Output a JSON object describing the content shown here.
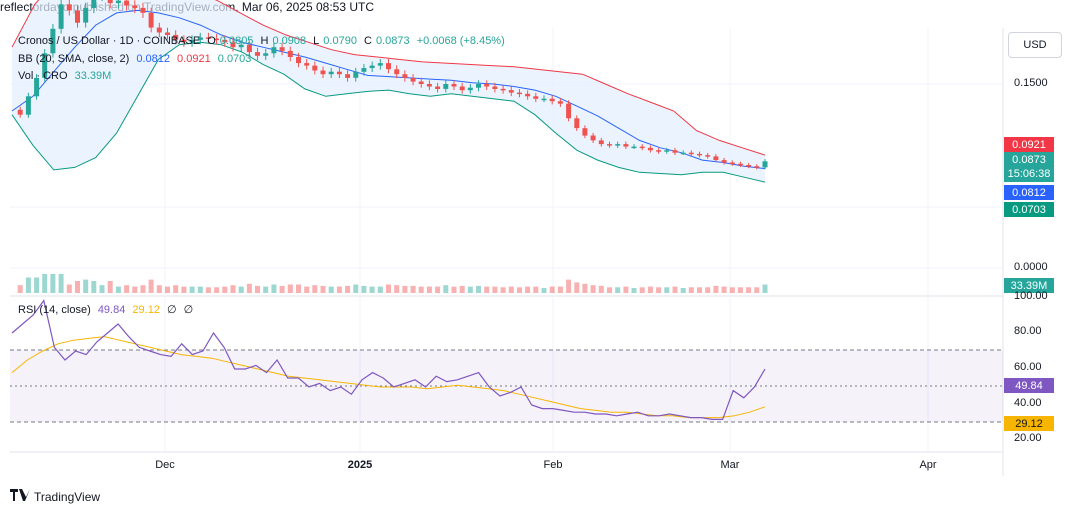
{
  "header": {
    "published": "reflectordayo published on TradingView.com, Mar 06, 2025 08:53 UTC"
  },
  "legend": {
    "main_symbol": "Cronos / US Dollar · 1D · COINBASE",
    "ohlc_o_label": "O",
    "ohlc_o": "0.0805",
    "ohlc_h_label": "H",
    "ohlc_h": "0.0908",
    "ohlc_l_label": "L",
    "ohlc_l": "0.0790",
    "ohlc_c_label": "C",
    "ohlc_c": "0.0873",
    "ohlc_change": "+0.0068 (+8.45%)",
    "bb_label": "BB (20, SMA, close, 2)",
    "bb_basis": "0.0812",
    "bb_upper": "0.0921",
    "bb_lower": "0.0703",
    "vol_label": "Vol · CRO",
    "vol_value": "33.39M",
    "rsi_label": "RSI (14, close)",
    "rsi_value": "49.84",
    "rsi_ma": "29.12",
    "rsi_extra1": "∅",
    "rsi_extra2": "∅"
  },
  "currency_button": "USD",
  "price_axis": {
    "tick_150": "0.1500",
    "tick_0": "0.0000"
  },
  "price_tags": {
    "bb_upper": "0.0921",
    "last": "0.0873",
    "countdown": "15:06:38",
    "bb_basis": "0.0812",
    "bb_lower": "0.0703",
    "volume": "33.39M"
  },
  "rsi_axis": {
    "t100": "100.00",
    "t80": "80.00",
    "t60": "60.00",
    "t40": "40.00",
    "t20": "20.00"
  },
  "rsi_tags": {
    "rsi": "49.84",
    "ma": "29.12"
  },
  "time_axis": [
    "Dec",
    "2025",
    "Feb",
    "Mar",
    "Apr"
  ],
  "footer": {
    "brand": "TradingView"
  },
  "colors": {
    "up": "#26a69a",
    "down": "#ef5350",
    "bb_upper": "#f23645",
    "bb_basis": "#2962ff",
    "bb_lower": "#089981",
    "bb_fill": "#e3effd",
    "rsi": "#7e57c2",
    "rsi_ma": "#f7b500"
  },
  "chart_data": {
    "type": "candlestick",
    "title": "Cronos / US Dollar · 1D · COINBASE",
    "price_axis": {
      "labeled_ticks": [
        0.15,
        0.0
      ]
    },
    "bollinger": {
      "basis": 0.0812,
      "upper": 0.0921,
      "lower": 0.0703
    },
    "last": {
      "open": 0.0805,
      "high": 0.0908,
      "low": 0.079,
      "close": 0.0873
    },
    "close_path": [
      [
        0.129,
        0.125,
        0.14,
        0.155,
        0.175,
        0.195,
        0.215,
        0.21,
        0.2,
        0.212,
        0.222,
        0.226,
        0.216,
        0.218,
        0.214,
        0.212,
        0.208,
        0.196,
        0.192,
        0.19,
        0.186,
        0.184,
        0.186,
        0.188,
        0.187,
        0.186,
        0.184,
        0.18,
        0.182,
        0.176,
        0.173,
        0.175,
        0.18,
        0.177,
        0.172,
        0.167,
        0.165,
        0.161,
        0.158,
        0.16,
        0.158,
        0.155,
        0.16,
        0.163,
        0.165,
        0.167,
        0.162,
        0.158,
        0.155,
        0.152,
        0.15,
        0.148,
        0.146,
        0.15,
        0.148,
        0.145,
        0.147,
        0.15,
        0.148,
        0.146,
        0.145,
        0.143,
        0.142,
        0.14,
        0.138,
        0.138,
        0.136,
        0.134,
        0.122,
        0.114,
        0.108,
        0.104,
        0.101,
        0.1,
        0.101,
        0.099,
        0.099,
        0.098,
        0.096,
        0.095,
        0.096,
        0.094,
        0.094,
        0.093,
        0.092,
        0.091,
        0.088,
        0.086,
        0.085,
        0.084,
        0.083,
        0.082,
        0.087
      ]
    ],
    "bb_upper_path": [
      0.18,
      0.215,
      0.236,
      0.24,
      0.24,
      0.238,
      0.234,
      0.23,
      0.226,
      0.218,
      0.208,
      0.198,
      0.19,
      0.184,
      0.178,
      0.174,
      0.172,
      0.17,
      0.168,
      0.167,
      0.166,
      0.165,
      0.164,
      0.162,
      0.16,
      0.158,
      0.15,
      0.142,
      0.135,
      0.128,
      0.112,
      0.104,
      0.098,
      0.092
    ],
    "bb_basis_path": [
      0.128,
      0.14,
      0.16,
      0.18,
      0.198,
      0.208,
      0.21,
      0.208,
      0.204,
      0.198,
      0.19,
      0.184,
      0.18,
      0.176,
      0.172,
      0.167,
      0.162,
      0.157,
      0.156,
      0.155,
      0.154,
      0.153,
      0.151,
      0.15,
      0.148,
      0.145,
      0.14,
      0.132,
      0.124,
      0.114,
      0.104,
      0.098,
      0.094,
      0.088,
      0.086,
      0.083,
      0.081
    ],
    "bb_lower_path": [
      0.125,
      0.1,
      0.08,
      0.082,
      0.09,
      0.11,
      0.14,
      0.17,
      0.182,
      0.184,
      0.182,
      0.176,
      0.166,
      0.158,
      0.146,
      0.14,
      0.142,
      0.144,
      0.145,
      0.142,
      0.14,
      0.142,
      0.14,
      0.138,
      0.136,
      0.125,
      0.11,
      0.096,
      0.088,
      0.082,
      0.078,
      0.077,
      0.076,
      0.078,
      0.078,
      0.074,
      0.07
    ],
    "rsi": [
      70,
      75,
      80,
      88,
      62,
      55,
      60,
      58,
      65,
      70,
      75,
      68,
      62,
      60,
      58,
      57,
      64,
      58,
      60,
      70,
      62,
      50,
      50,
      52,
      48,
      55,
      45,
      45,
      40,
      42,
      38,
      40,
      36,
      44,
      48,
      45,
      40,
      42,
      44,
      40,
      46,
      43,
      44,
      46,
      48,
      40,
      35,
      37,
      40,
      30,
      28,
      28,
      27,
      26,
      26,
      25,
      25,
      24,
      25,
      26,
      24,
      24,
      25,
      24,
      23,
      23,
      22,
      22,
      38,
      34,
      40,
      50
    ],
    "rsi_ma": [
      48,
      55,
      60,
      64,
      66,
      67,
      68,
      66,
      64,
      62,
      60,
      58,
      57,
      56,
      54,
      52,
      50,
      48,
      46,
      45,
      44,
      43,
      42,
      41,
      40,
      40,
      40,
      39,
      40,
      41,
      40,
      39,
      38,
      36,
      34,
      32,
      30,
      28,
      27,
      26,
      26,
      25,
      24,
      24,
      23,
      23,
      23,
      24,
      26,
      29
    ],
    "rsi_levels": {
      "upper": 70,
      "middle": 50,
      "lower": 30
    },
    "time_labels": [
      "Dec",
      "2025",
      "Feb",
      "Mar",
      "Apr"
    ]
  }
}
